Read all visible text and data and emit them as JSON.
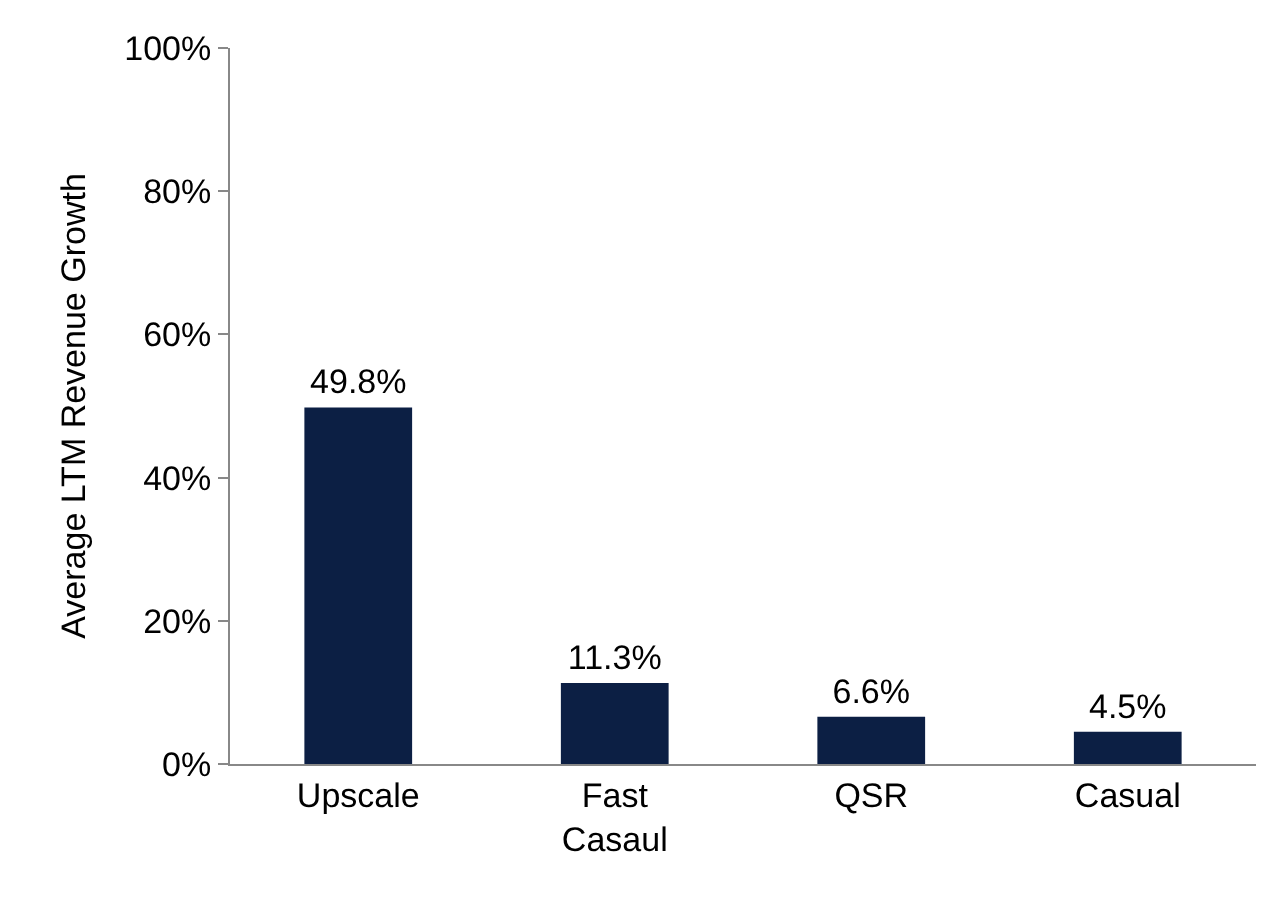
{
  "chart_data": {
    "type": "bar",
    "ylabel": "Average LTM Revenue Growth",
    "categories": [
      "Upscale",
      "Fast Casaul",
      "QSR",
      "Casual"
    ],
    "values": [
      49.8,
      11.3,
      6.6,
      4.5
    ],
    "value_labels": [
      "49.8%",
      "11.3%",
      "6.6%",
      "4.5%"
    ],
    "color": "#0c1f44",
    "ylim": [
      0,
      100
    ],
    "yticks": [
      {
        "value": 0,
        "label": "0%"
      },
      {
        "value": 20,
        "label": "20%"
      },
      {
        "value": 40,
        "label": "40%"
      },
      {
        "value": 60,
        "label": "60%"
      },
      {
        "value": 80,
        "label": "80%"
      },
      {
        "value": 100,
        "label": "100%"
      }
    ],
    "grid": false,
    "legend": false
  }
}
